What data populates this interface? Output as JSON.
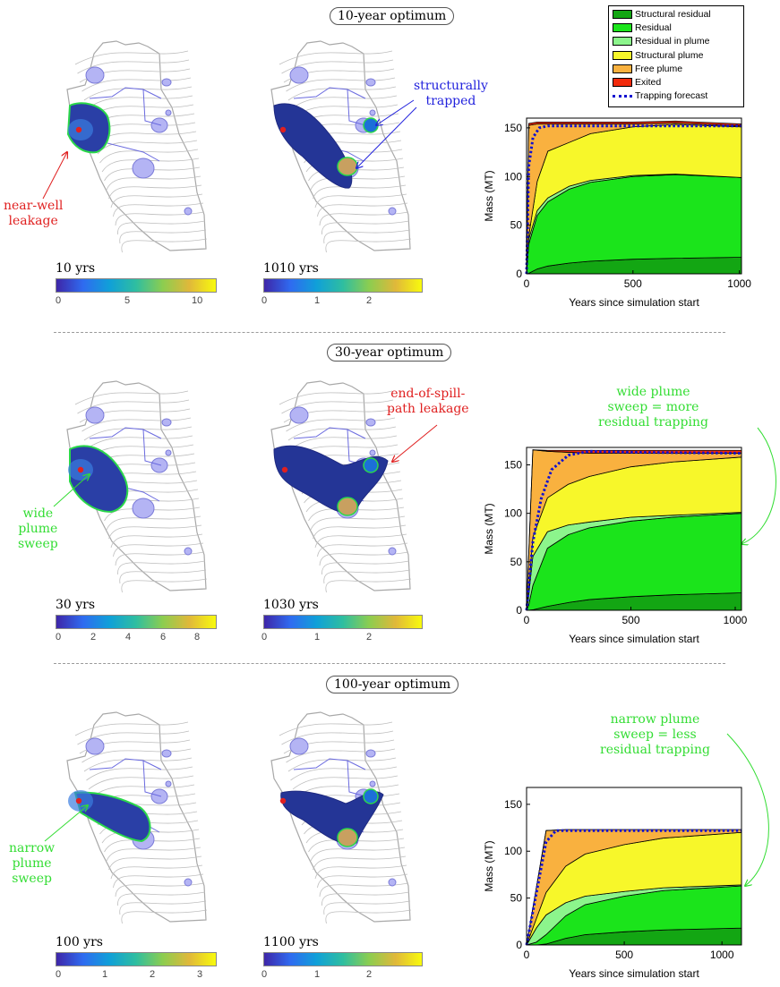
{
  "panels": [
    {
      "heading": "10-year optimum",
      "left_time": "10 yrs",
      "left_ticks": [
        "0",
        "5",
        "10"
      ],
      "right_time": "1010 yrs",
      "right_ticks": [
        "0",
        "1",
        "2"
      ],
      "annotations": [
        {
          "text_lines": [
            "near-well",
            "leakage"
          ],
          "color": "#e02020"
        },
        {
          "text_lines": [
            "structurally",
            "trapped"
          ],
          "color": "#2222dd"
        }
      ]
    },
    {
      "heading": "30-year optimum",
      "left_time": "30 yrs",
      "left_ticks": [
        "0",
        "2",
        "4",
        "6",
        "8"
      ],
      "right_time": "1030 yrs",
      "right_ticks": [
        "0",
        "1",
        "2"
      ],
      "annotations": [
        {
          "text_lines": [
            "wide",
            "plume",
            "sweep"
          ],
          "color": "#33dd33"
        },
        {
          "text_lines": [
            "end-of-spill-",
            "path leakage"
          ],
          "color": "#e02020"
        },
        {
          "text_lines": [
            "wide plume",
            "sweep = more",
            "residual trapping"
          ],
          "color": "#33dd33"
        }
      ]
    },
    {
      "heading": "100-year optimum",
      "left_time": "100 yrs",
      "left_ticks": [
        "0",
        "1",
        "2",
        "3"
      ],
      "right_time": "1100 yrs",
      "right_ticks": [
        "0",
        "1",
        "2"
      ],
      "annotations": [
        {
          "text_lines": [
            "narrow",
            "plume",
            "sweep"
          ],
          "color": "#33dd33"
        },
        {
          "text_lines": [
            "narrow plume",
            "sweep = less",
            "residual trapping"
          ],
          "color": "#33dd33"
        }
      ]
    }
  ],
  "legend": [
    {
      "label": "Structural residual",
      "color": "#13a613"
    },
    {
      "label": "Residual",
      "color": "#1be41b"
    },
    {
      "label": "Residual in plume",
      "color": "#8cf58c"
    },
    {
      "label": "Structural plume",
      "color": "#f7f72a"
    },
    {
      "label": "Free plume",
      "color": "#f9b13f"
    },
    {
      "label": "Exited",
      "color": "#f22b0c"
    },
    {
      "label": "Trapping forecast",
      "color": "#1010d0"
    }
  ],
  "chart_data": [
    {
      "type": "area",
      "xlabel": "Years since simulation start",
      "ylabel": "Mass (MT)",
      "xlim": [
        0,
        1010
      ],
      "ylim": [
        0,
        160
      ],
      "xticks": [
        0,
        500,
        1000
      ],
      "yticks": [
        0,
        50,
        100,
        150
      ],
      "x": [
        0,
        10,
        50,
        100,
        200,
        300,
        500,
        700,
        1010
      ],
      "series": [
        {
          "name": "Structural residual",
          "values": [
            0,
            0.5,
            5,
            8,
            11,
            13,
            15,
            16,
            17
          ]
        },
        {
          "name": "Residual",
          "values": [
            0,
            30,
            55,
            66,
            76,
            81,
            85,
            86,
            82
          ]
        },
        {
          "name": "Residual in plume",
          "values": [
            0,
            5,
            5,
            4,
            3,
            2,
            1,
            0.5,
            0
          ]
        },
        {
          "name": "Structural plume",
          "values": [
            0,
            3,
            30,
            48,
            45,
            48,
            50,
            51,
            52
          ]
        },
        {
          "name": "Free plume",
          "values": [
            0,
            114,
            59,
            28,
            19,
            10,
            3,
            1.5,
            1
          ]
        },
        {
          "name": "Exited",
          "values": [
            0,
            2,
            2,
            2,
            2,
            2,
            2,
            2,
            2
          ]
        }
      ],
      "forecast": [
        [
          0,
          0
        ],
        [
          10,
          110
        ],
        [
          30,
          140
        ],
        [
          60,
          150
        ],
        [
          100,
          152
        ],
        [
          500,
          152
        ],
        [
          1010,
          152
        ]
      ]
    },
    {
      "type": "area",
      "xlabel": "Years since simulation start",
      "ylabel": "Mass (MT)",
      "xlim": [
        0,
        1030
      ],
      "ylim": [
        0,
        168
      ],
      "xticks": [
        0,
        500,
        1000
      ],
      "yticks": [
        0,
        50,
        100,
        150
      ],
      "x": [
        0,
        10,
        30,
        100,
        200,
        300,
        500,
        700,
        1030
      ],
      "series": [
        {
          "name": "Structural residual",
          "values": [
            0,
            0.1,
            0.5,
            4,
            8,
            11,
            14,
            16,
            18
          ]
        },
        {
          "name": "Residual",
          "values": [
            0,
            5,
            25,
            60,
            70,
            74,
            78,
            80,
            82
          ]
        },
        {
          "name": "Residual in plume",
          "values": [
            0,
            10,
            30,
            17,
            10,
            6,
            4,
            2,
            1
          ]
        },
        {
          "name": "Structural plume",
          "values": [
            0,
            5,
            20,
            35,
            42,
            47,
            52,
            55,
            57
          ]
        },
        {
          "name": "Free plume",
          "values": [
            0,
            36,
            90,
            48,
            33,
            24,
            14,
            9,
            4
          ]
        },
        {
          "name": "Exited",
          "values": [
            0,
            0,
            0,
            1,
            2,
            3,
            3,
            3,
            3
          ]
        }
      ],
      "forecast": [
        [
          0,
          0
        ],
        [
          30,
          70
        ],
        [
          70,
          115
        ],
        [
          120,
          145
        ],
        [
          200,
          160
        ],
        [
          300,
          164
        ],
        [
          500,
          163
        ],
        [
          1030,
          162
        ]
      ]
    },
    {
      "type": "area",
      "xlabel": "Years since simulation start",
      "ylabel": "Mass (MT)",
      "xlim": [
        0,
        1100
      ],
      "ylim": [
        0,
        168
      ],
      "xticks": [
        0,
        500,
        1000
      ],
      "yticks": [
        0,
        50,
        100,
        150
      ],
      "x": [
        0,
        50,
        100,
        200,
        300,
        500,
        700,
        1100
      ],
      "series": [
        {
          "name": "Structural residual",
          "values": [
            0,
            0,
            1,
            7,
            11,
            14,
            16,
            18
          ]
        },
        {
          "name": "Residual",
          "values": [
            0,
            3,
            10,
            24,
            32,
            38,
            42,
            45
          ]
        },
        {
          "name": "Residual in plume",
          "values": [
            0,
            15,
            21,
            14,
            9,
            5,
            3,
            1
          ]
        },
        {
          "name": "Structural plume",
          "values": [
            0,
            10,
            24,
            39,
            45,
            50,
            53,
            56
          ]
        },
        {
          "name": "Free plume",
          "values": [
            0,
            33,
            66,
            39,
            26,
            16,
            9,
            3
          ]
        },
        {
          "name": "Exited",
          "values": [
            0,
            0,
            0,
            0,
            0,
            0,
            0,
            0
          ]
        }
      ],
      "forecast": [
        [
          0,
          0
        ],
        [
          50,
          55
        ],
        [
          100,
          110
        ],
        [
          150,
          122
        ],
        [
          300,
          122
        ],
        [
          1100,
          122
        ]
      ]
    }
  ]
}
